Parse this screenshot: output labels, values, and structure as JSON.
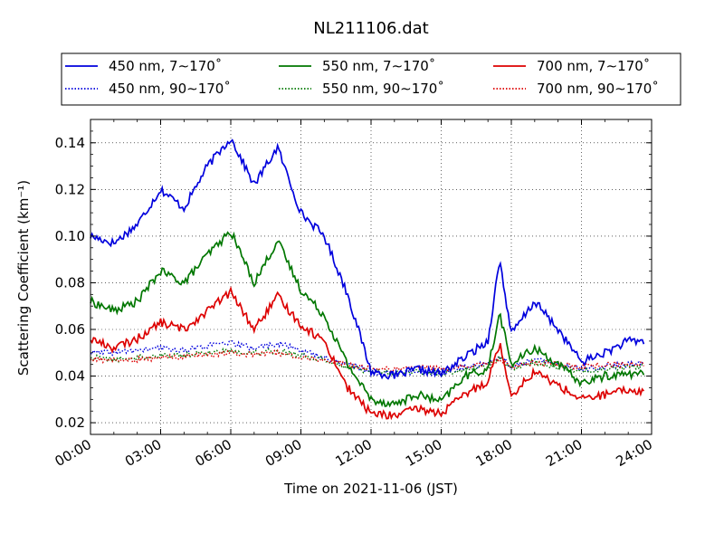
{
  "chart_data": {
    "type": "line",
    "title": "NL211106.dat",
    "xlabel": "Time on 2021-11-06 (JST)",
    "ylabel": "Scattering Coefficient (km⁻¹)",
    "xlim": [
      "00:00",
      "24:00"
    ],
    "ylim": [
      0.015,
      0.15
    ],
    "x_ticks": [
      "00:00",
      "03:00",
      "06:00",
      "09:00",
      "12:00",
      "15:00",
      "18:00",
      "21:00",
      "24:00"
    ],
    "y_ticks": [
      "0.02",
      "0.04",
      "0.06",
      "0.08",
      "0.10",
      "0.12",
      "0.14"
    ],
    "grid": true,
    "legend_position": "top",
    "x": [
      "00:00",
      "01:00",
      "02:00",
      "03:00",
      "04:00",
      "05:00",
      "06:00",
      "07:00",
      "08:00",
      "09:00",
      "10:00",
      "11:00",
      "12:00",
      "13:00",
      "14:00",
      "15:00",
      "16:00",
      "17:00",
      "17:30",
      "18:00",
      "19:00",
      "20:00",
      "21:00",
      "22:00",
      "23:00",
      "24:00"
    ],
    "series": [
      {
        "name": "450 nm, 7∼170˚",
        "color": "#0000dd",
        "style": "solid",
        "values": [
          0.1,
          0.097,
          0.105,
          0.12,
          0.112,
          0.13,
          0.142,
          0.122,
          0.138,
          0.11,
          0.1,
          0.075,
          0.042,
          0.04,
          0.043,
          0.041,
          0.048,
          0.055,
          0.09,
          0.058,
          0.072,
          0.06,
          0.046,
          0.05,
          0.055,
          0.055
        ]
      },
      {
        "name": "550 nm, 7∼170˚",
        "color": "#007700",
        "style": "solid",
        "values": [
          0.072,
          0.068,
          0.072,
          0.085,
          0.08,
          0.092,
          0.102,
          0.08,
          0.098,
          0.077,
          0.066,
          0.045,
          0.03,
          0.028,
          0.032,
          0.029,
          0.04,
          0.043,
          0.067,
          0.045,
          0.052,
          0.045,
          0.037,
          0.04,
          0.041,
          0.041
        ]
      },
      {
        "name": "700 nm, 7∼170˚",
        "color": "#dd0000",
        "style": "solid",
        "values": [
          0.056,
          0.052,
          0.056,
          0.063,
          0.06,
          0.068,
          0.076,
          0.06,
          0.074,
          0.062,
          0.055,
          0.035,
          0.024,
          0.023,
          0.026,
          0.024,
          0.032,
          0.038,
          0.054,
          0.032,
          0.042,
          0.036,
          0.03,
          0.032,
          0.034,
          0.033
        ]
      },
      {
        "name": "450 nm, 90∼170˚",
        "color": "#0000dd",
        "style": "dotted",
        "values": [
          0.05,
          0.05,
          0.051,
          0.052,
          0.051,
          0.053,
          0.054,
          0.052,
          0.054,
          0.051,
          0.048,
          0.045,
          0.042,
          0.041,
          0.042,
          0.041,
          0.044,
          0.045,
          0.049,
          0.044,
          0.047,
          0.045,
          0.043,
          0.044,
          0.045,
          0.045
        ]
      },
      {
        "name": "550 nm, 90∼170˚",
        "color": "#007700",
        "style": "dotted",
        "values": [
          0.048,
          0.047,
          0.048,
          0.049,
          0.049,
          0.05,
          0.051,
          0.05,
          0.051,
          0.049,
          0.047,
          0.044,
          0.042,
          0.041,
          0.042,
          0.041,
          0.043,
          0.044,
          0.048,
          0.043,
          0.046,
          0.044,
          0.042,
          0.043,
          0.044,
          0.044
        ]
      },
      {
        "name": "700 nm, 90∼170˚",
        "color": "#dd0000",
        "style": "dotted",
        "values": [
          0.047,
          0.047,
          0.047,
          0.048,
          0.048,
          0.049,
          0.05,
          0.049,
          0.05,
          0.048,
          0.047,
          0.045,
          0.043,
          0.043,
          0.044,
          0.043,
          0.044,
          0.045,
          0.047,
          0.044,
          0.046,
          0.045,
          0.044,
          0.045,
          0.045,
          0.045
        ]
      }
    ]
  }
}
